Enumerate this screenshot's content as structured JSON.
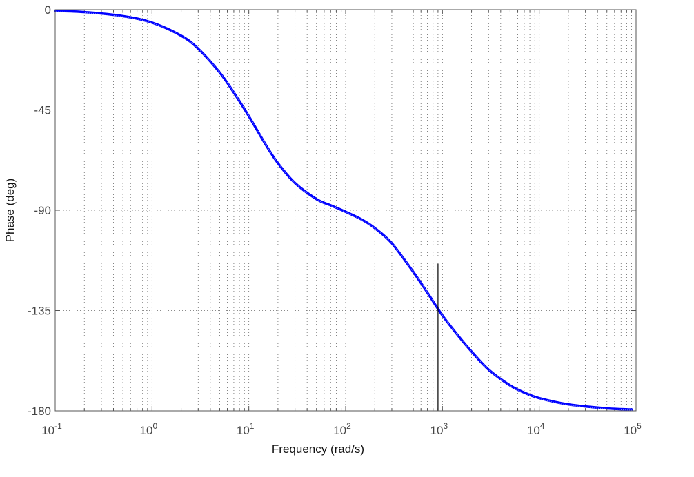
{
  "chart_data": {
    "type": "line",
    "title": "",
    "xlabel": "Frequency  (rad/s)",
    "ylabel": "Phase (deg)",
    "xscale": "log",
    "xlim": [
      0.1,
      100000
    ],
    "ylim": [
      -180,
      0
    ],
    "grid": true,
    "x_tick_values": [
      0.1,
      1,
      10,
      100,
      1000,
      10000,
      100000
    ],
    "x_tick_labels": [
      {
        "base": "10",
        "exp": "-1"
      },
      {
        "base": "10",
        "exp": "0"
      },
      {
        "base": "10",
        "exp": "1"
      },
      {
        "base": "10",
        "exp": "2"
      },
      {
        "base": "10",
        "exp": "3"
      },
      {
        "base": "10",
        "exp": "4"
      },
      {
        "base": "10",
        "exp": "5"
      }
    ],
    "y_tick_values": [
      0,
      -45,
      -90,
      -135,
      -180
    ],
    "y_tick_labels": [
      "0",
      "-45",
      "-90",
      "-135",
      "-180"
    ],
    "series": [
      {
        "color": "#0000ff",
        "x": [
          0.1,
          0.2,
          0.5,
          1,
          2,
          3,
          5,
          7,
          10,
          15,
          20,
          30,
          50,
          70,
          100,
          150,
          200,
          300,
          500,
          700,
          1000,
          1500,
          2000,
          3000,
          5000,
          7000,
          10000,
          20000,
          50000,
          90000
        ],
        "y": [
          -0.6,
          -1.1,
          -2.9,
          -5.8,
          -11.7,
          -17.5,
          -28.2,
          -37.2,
          -47.8,
          -60.7,
          -68.9,
          -77.8,
          -85.0,
          -87.8,
          -90.7,
          -94.4,
          -98.0,
          -104.8,
          -117.7,
          -127.0,
          -137.2,
          -147.0,
          -153.4,
          -161.5,
          -168.6,
          -171.8,
          -174.3,
          -177.1,
          -178.9,
          -179.4
        ]
      }
    ],
    "annotations": [
      {
        "type": "vertical-line",
        "x": 900,
        "from_y": -114,
        "to_y": -180,
        "color": "#000000"
      }
    ]
  }
}
